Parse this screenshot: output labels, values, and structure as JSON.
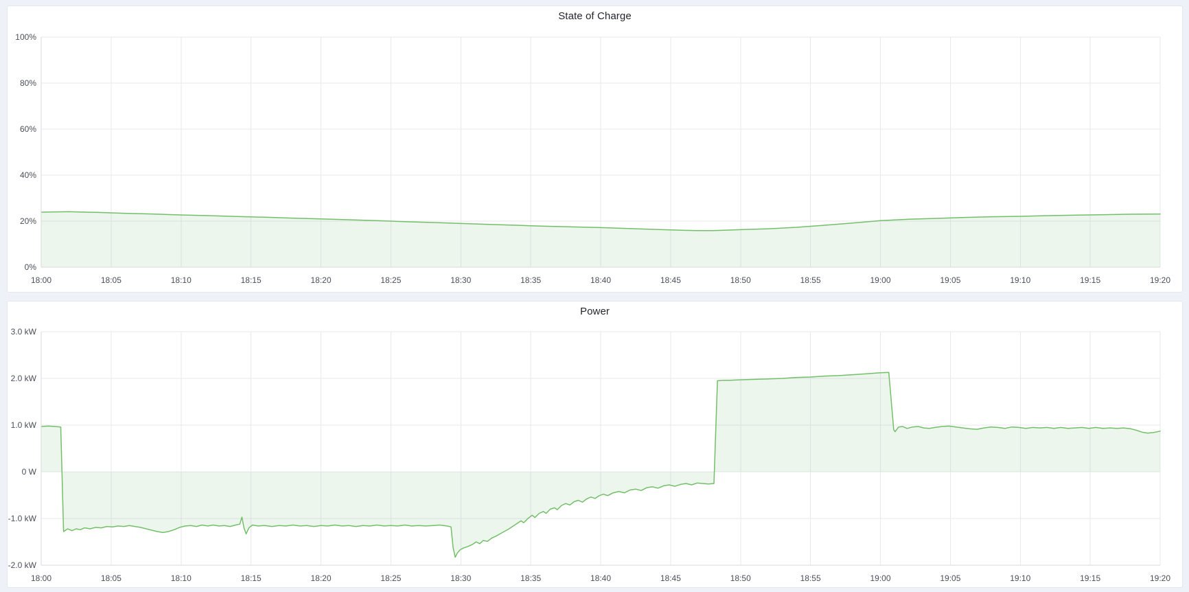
{
  "page": {
    "background": "#eef1f7",
    "panel_background": "#ffffff",
    "panel_border": "#e3e7ef"
  },
  "chart_data": [
    {
      "type": "area",
      "title": "State of Charge",
      "xlabel": "",
      "ylabel": "",
      "grid": true,
      "legend": "none",
      "xlim": [
        0,
        80
      ],
      "ylim": [
        0,
        100
      ],
      "x_tick_minutes": [
        0,
        5,
        10,
        15,
        20,
        25,
        30,
        35,
        40,
        45,
        50,
        55,
        60,
        65,
        70,
        75,
        80
      ],
      "x_tick_labels": [
        "18:00",
        "18:05",
        "18:10",
        "18:15",
        "18:20",
        "18:25",
        "18:30",
        "18:35",
        "18:40",
        "18:45",
        "18:50",
        "18:55",
        "19:00",
        "19:05",
        "19:10",
        "19:15",
        "19:20"
      ],
      "y_tick_values": [
        100,
        80,
        60,
        40,
        20,
        0
      ],
      "y_tick_labels": [
        "100%",
        "80%",
        "60%",
        "40%",
        "20%",
        "0%"
      ],
      "series": [
        {
          "name": "State of Charge",
          "unit": "percent",
          "color": "#73bf69",
          "fill": "rgba(115,185,105,0.13)",
          "points": [
            [
              0,
              23.9
            ],
            [
              2,
              24.1
            ],
            [
              4,
              23.8
            ],
            [
              6,
              23.4
            ],
            [
              8,
              23.1
            ],
            [
              10,
              22.7
            ],
            [
              12,
              22.4
            ],
            [
              14,
              22.0
            ],
            [
              16,
              21.7
            ],
            [
              18,
              21.3
            ],
            [
              20,
              21.0
            ],
            [
              22,
              20.6
            ],
            [
              24,
              20.2
            ],
            [
              26,
              19.8
            ],
            [
              28,
              19.4
            ],
            [
              30,
              19.0
            ],
            [
              32,
              18.6
            ],
            [
              34,
              18.2
            ],
            [
              36,
              17.8
            ],
            [
              38,
              17.5
            ],
            [
              40,
              17.2
            ],
            [
              42,
              16.8
            ],
            [
              44,
              16.4
            ],
            [
              45,
              16.2
            ],
            [
              46,
              16.0
            ],
            [
              47,
              15.9
            ],
            [
              48,
              15.9
            ],
            [
              49,
              16.1
            ],
            [
              50,
              16.3
            ],
            [
              52,
              16.7
            ],
            [
              54,
              17.3
            ],
            [
              56,
              18.2
            ],
            [
              58,
              19.2
            ],
            [
              60,
              20.2
            ],
            [
              62,
              20.8
            ],
            [
              64,
              21.2
            ],
            [
              66,
              21.6
            ],
            [
              68,
              21.9
            ],
            [
              70,
              22.1
            ],
            [
              72,
              22.4
            ],
            [
              74,
              22.6
            ],
            [
              76,
              22.8
            ],
            [
              78,
              23.0
            ],
            [
              80,
              23.1
            ]
          ]
        }
      ]
    },
    {
      "type": "area",
      "title": "Power",
      "xlabel": "",
      "ylabel": "",
      "grid": true,
      "legend": "none",
      "xlim": [
        0,
        80
      ],
      "ylim": [
        -2,
        3
      ],
      "x_tick_minutes": [
        0,
        5,
        10,
        15,
        20,
        25,
        30,
        35,
        40,
        45,
        50,
        55,
        60,
        65,
        70,
        75,
        80
      ],
      "x_tick_labels": [
        "18:00",
        "18:05",
        "18:10",
        "18:15",
        "18:20",
        "18:25",
        "18:30",
        "18:35",
        "18:40",
        "18:45",
        "18:50",
        "18:55",
        "19:00",
        "19:05",
        "19:10",
        "19:15",
        "19:20"
      ],
      "y_tick_values": [
        3,
        2,
        1,
        0,
        -1,
        -2
      ],
      "y_tick_labels": [
        "3.0 kW",
        "2.0 kW",
        "1.0 kW",
        "0 W",
        "-1.0 kW",
        "-2.0 kW"
      ],
      "series": [
        {
          "name": "Power",
          "unit": "kW",
          "color": "#73bf69",
          "fill": "rgba(115,185,105,0.13)",
          "points": [
            [
              0,
              0.97
            ],
            [
              0.5,
              0.98
            ],
            [
              1.0,
              0.97
            ],
            [
              1.4,
              0.96
            ],
            [
              1.6,
              -1.28
            ],
            [
              1.9,
              -1.22
            ],
            [
              2.2,
              -1.26
            ],
            [
              2.5,
              -1.22
            ],
            [
              2.8,
              -1.24
            ],
            [
              3.1,
              -1.2
            ],
            [
              3.5,
              -1.22
            ],
            [
              3.9,
              -1.19
            ],
            [
              4.3,
              -1.2
            ],
            [
              4.7,
              -1.17
            ],
            [
              5.1,
              -1.18
            ],
            [
              5.5,
              -1.16
            ],
            [
              5.9,
              -1.17
            ],
            [
              6.3,
              -1.15
            ],
            [
              6.7,
              -1.17
            ],
            [
              7.1,
              -1.19
            ],
            [
              7.5,
              -1.22
            ],
            [
              7.9,
              -1.25
            ],
            [
              8.3,
              -1.28
            ],
            [
              8.7,
              -1.3
            ],
            [
              9.1,
              -1.28
            ],
            [
              9.5,
              -1.24
            ],
            [
              9.9,
              -1.19
            ],
            [
              10.3,
              -1.16
            ],
            [
              10.7,
              -1.15
            ],
            [
              11.1,
              -1.17
            ],
            [
              11.5,
              -1.14
            ],
            [
              11.9,
              -1.16
            ],
            [
              12.3,
              -1.14
            ],
            [
              12.7,
              -1.16
            ],
            [
              13.1,
              -1.15
            ],
            [
              13.5,
              -1.17
            ],
            [
              13.9,
              -1.14
            ],
            [
              14.2,
              -1.12
            ],
            [
              14.35,
              -0.97
            ],
            [
              14.5,
              -1.2
            ],
            [
              14.65,
              -1.33
            ],
            [
              14.85,
              -1.2
            ],
            [
              15.1,
              -1.14
            ],
            [
              15.5,
              -1.16
            ],
            [
              16,
              -1.15
            ],
            [
              16.5,
              -1.17
            ],
            [
              17,
              -1.15
            ],
            [
              17.5,
              -1.16
            ],
            [
              18,
              -1.14
            ],
            [
              18.5,
              -1.16
            ],
            [
              19,
              -1.15
            ],
            [
              19.5,
              -1.17
            ],
            [
              20,
              -1.15
            ],
            [
              20.5,
              -1.16
            ],
            [
              21,
              -1.14
            ],
            [
              21.5,
              -1.16
            ],
            [
              22,
              -1.15
            ],
            [
              22.5,
              -1.17
            ],
            [
              23,
              -1.15
            ],
            [
              23.5,
              -1.16
            ],
            [
              24,
              -1.14
            ],
            [
              24.5,
              -1.16
            ],
            [
              25,
              -1.15
            ],
            [
              25.5,
              -1.16
            ],
            [
              26,
              -1.14
            ],
            [
              26.5,
              -1.16
            ],
            [
              27,
              -1.15
            ],
            [
              27.5,
              -1.16
            ],
            [
              28,
              -1.15
            ],
            [
              28.5,
              -1.14
            ],
            [
              29,
              -1.16
            ],
            [
              29.3,
              -1.18
            ],
            [
              29.45,
              -1.62
            ],
            [
              29.6,
              -1.83
            ],
            [
              29.75,
              -1.74
            ],
            [
              29.95,
              -1.67
            ],
            [
              30.2,
              -1.63
            ],
            [
              30.5,
              -1.6
            ],
            [
              30.8,
              -1.56
            ],
            [
              31.1,
              -1.5
            ],
            [
              31.35,
              -1.54
            ],
            [
              31.6,
              -1.47
            ],
            [
              31.9,
              -1.49
            ],
            [
              32.2,
              -1.42
            ],
            [
              32.5,
              -1.38
            ],
            [
              32.8,
              -1.33
            ],
            [
              33.1,
              -1.28
            ],
            [
              33.4,
              -1.23
            ],
            [
              33.7,
              -1.17
            ],
            [
              34,
              -1.11
            ],
            [
              34.3,
              -1.05
            ],
            [
              34.5,
              -1.09
            ],
            [
              34.8,
              -1.0
            ],
            [
              35.1,
              -0.93
            ],
            [
              35.3,
              -0.98
            ],
            [
              35.6,
              -0.89
            ],
            [
              35.9,
              -0.85
            ],
            [
              36.1,
              -0.89
            ],
            [
              36.4,
              -0.8
            ],
            [
              36.7,
              -0.77
            ],
            [
              36.9,
              -0.81
            ],
            [
              37.2,
              -0.72
            ],
            [
              37.5,
              -0.68
            ],
            [
              37.8,
              -0.71
            ],
            [
              38.1,
              -0.64
            ],
            [
              38.4,
              -0.61
            ],
            [
              38.7,
              -0.65
            ],
            [
              39,
              -0.58
            ],
            [
              39.3,
              -0.54
            ],
            [
              39.6,
              -0.57
            ],
            [
              39.9,
              -0.51
            ],
            [
              40.2,
              -0.48
            ],
            [
              40.5,
              -0.51
            ],
            [
              40.9,
              -0.45
            ],
            [
              41.3,
              -0.42
            ],
            [
              41.7,
              -0.45
            ],
            [
              42.1,
              -0.39
            ],
            [
              42.5,
              -0.37
            ],
            [
              42.9,
              -0.4
            ],
            [
              43.3,
              -0.34
            ],
            [
              43.7,
              -0.32
            ],
            [
              44.1,
              -0.35
            ],
            [
              44.5,
              -0.3
            ],
            [
              44.9,
              -0.28
            ],
            [
              45.3,
              -0.31
            ],
            [
              45.7,
              -0.27
            ],
            [
              46.1,
              -0.25
            ],
            [
              46.5,
              -0.28
            ],
            [
              46.9,
              -0.24
            ],
            [
              47.3,
              -0.25
            ],
            [
              47.7,
              -0.26
            ],
            [
              48.1,
              -0.25
            ],
            [
              48.35,
              1.95
            ],
            [
              48.7,
              1.96
            ],
            [
              49.2,
              1.96
            ],
            [
              50,
              1.97
            ],
            [
              51,
              1.98
            ],
            [
              52,
              1.99
            ],
            [
              53,
              2.0
            ],
            [
              54,
              2.02
            ],
            [
              55,
              2.03
            ],
            [
              56,
              2.05
            ],
            [
              57,
              2.06
            ],
            [
              58,
              2.08
            ],
            [
              59,
              2.1
            ],
            [
              60,
              2.12
            ],
            [
              60.6,
              2.13
            ],
            [
              60.95,
              0.9
            ],
            [
              61.05,
              0.86
            ],
            [
              61.3,
              0.96
            ],
            [
              61.6,
              0.97
            ],
            [
              61.9,
              0.93
            ],
            [
              62.3,
              0.96
            ],
            [
              62.7,
              0.97
            ],
            [
              63.1,
              0.94
            ],
            [
              63.5,
              0.93
            ],
            [
              63.9,
              0.95
            ],
            [
              64.4,
              0.97
            ],
            [
              64.9,
              0.98
            ],
            [
              65.4,
              0.96
            ],
            [
              65.9,
              0.94
            ],
            [
              66.4,
              0.92
            ],
            [
              66.9,
              0.91
            ],
            [
              67.4,
              0.94
            ],
            [
              67.9,
              0.96
            ],
            [
              68.4,
              0.95
            ],
            [
              68.9,
              0.93
            ],
            [
              69.4,
              0.96
            ],
            [
              69.9,
              0.95
            ],
            [
              70.4,
              0.93
            ],
            [
              70.9,
              0.95
            ],
            [
              71.4,
              0.94
            ],
            [
              71.9,
              0.95
            ],
            [
              72.4,
              0.93
            ],
            [
              72.9,
              0.95
            ],
            [
              73.4,
              0.93
            ],
            [
              73.9,
              0.94
            ],
            [
              74.4,
              0.95
            ],
            [
              74.9,
              0.93
            ],
            [
              75.4,
              0.95
            ],
            [
              75.9,
              0.93
            ],
            [
              76.4,
              0.94
            ],
            [
              76.9,
              0.93
            ],
            [
              77.4,
              0.94
            ],
            [
              77.9,
              0.92
            ],
            [
              78.3,
              0.89
            ],
            [
              78.7,
              0.85
            ],
            [
              79.1,
              0.83
            ],
            [
              79.5,
              0.84
            ],
            [
              80,
              0.87
            ]
          ]
        }
      ]
    }
  ],
  "style": {
    "grid_color": "#e8e9ed",
    "frame_color": "#d8dade",
    "tick_label_color": "#4b4e57",
    "title_color": "#24262c"
  }
}
